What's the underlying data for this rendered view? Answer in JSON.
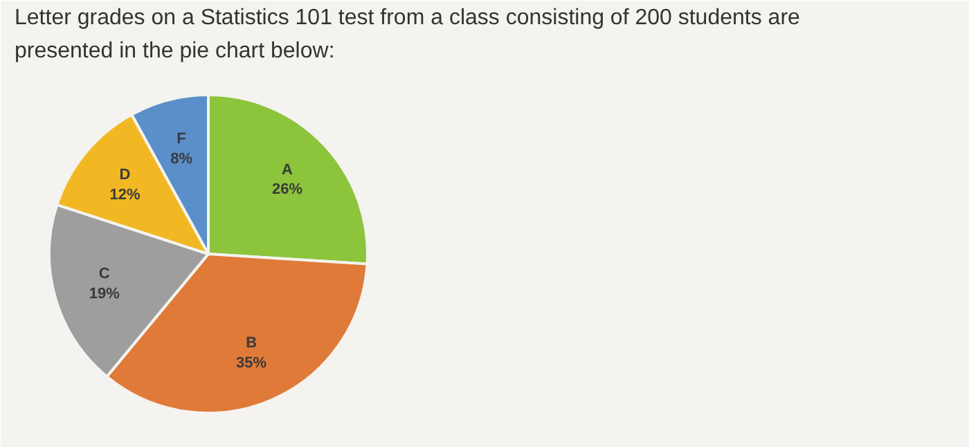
{
  "chart_data": {
    "type": "pie",
    "title": "Letter grades on a Statistics 101 test from a class consisting of 200 students are presented in the pie chart below:",
    "categories": [
      "A",
      "B",
      "C",
      "D",
      "F"
    ],
    "values": [
      26,
      35,
      19,
      12,
      8
    ],
    "colors": [
      "#8cc43c",
      "#e07a38",
      "#9e9e9e",
      "#f2b824",
      "#5a8fca"
    ],
    "value_labels": [
      "26%",
      "35%",
      "19%",
      "12%",
      "8%"
    ]
  }
}
